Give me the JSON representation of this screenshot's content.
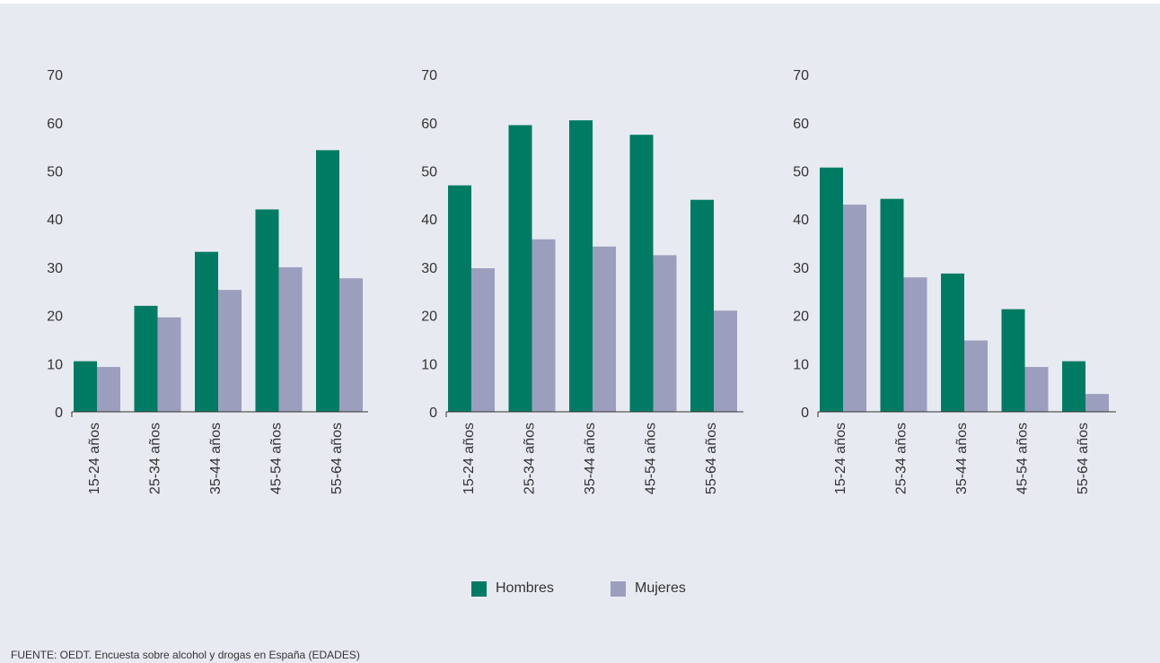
{
  "colors": {
    "hombres": "#007b63",
    "mujeres": "#9b9fbd",
    "background": "#e8eaf2",
    "axis": "#333333"
  },
  "legend": {
    "hombres": "Hombres",
    "mujeres": "Mujeres"
  },
  "source": "FUENTE: OEDT. Encuesta sobre alcohol y drogas en España (EDADES)",
  "chart_data": [
    {
      "type": "bar",
      "categories": [
        "15-24 años",
        "25-34 años",
        "35-44 años",
        "45-54 años",
        "55-64 años"
      ],
      "series": [
        {
          "name": "Hombres",
          "values": [
            10.5,
            22,
            33.2,
            42,
            54.3
          ]
        },
        {
          "name": "Mujeres",
          "values": [
            9.3,
            19.6,
            25.3,
            30,
            27.7
          ]
        }
      ],
      "yticks": [
        0,
        10,
        20,
        30,
        40,
        50,
        60,
        70
      ],
      "ylim": [
        0,
        70
      ]
    },
    {
      "type": "bar",
      "categories": [
        "15-24 años",
        "25-34 años",
        "35-44 años",
        "45-54 años",
        "55-64 años"
      ],
      "series": [
        {
          "name": "Hombres",
          "values": [
            47,
            59.5,
            60.5,
            57.5,
            44
          ]
        },
        {
          "name": "Mujeres",
          "values": [
            29.8,
            35.8,
            34.3,
            32.5,
            21
          ]
        }
      ],
      "yticks": [
        0,
        10,
        20,
        30,
        40,
        50,
        60,
        70
      ],
      "ylim": [
        0,
        70
      ]
    },
    {
      "type": "bar",
      "categories": [
        "15-24 años",
        "25-34 años",
        "35-44 años",
        "45-54 años",
        "55-64 años"
      ],
      "series": [
        {
          "name": "Hombres",
          "values": [
            50.7,
            44.2,
            28.7,
            21.3,
            10.5
          ]
        },
        {
          "name": "Mujeres",
          "values": [
            43,
            27.9,
            14.8,
            9.3,
            3.7
          ]
        }
      ],
      "yticks": [
        0,
        10,
        20,
        30,
        40,
        50,
        60,
        70
      ],
      "ylim": [
        0,
        70
      ]
    }
  ]
}
